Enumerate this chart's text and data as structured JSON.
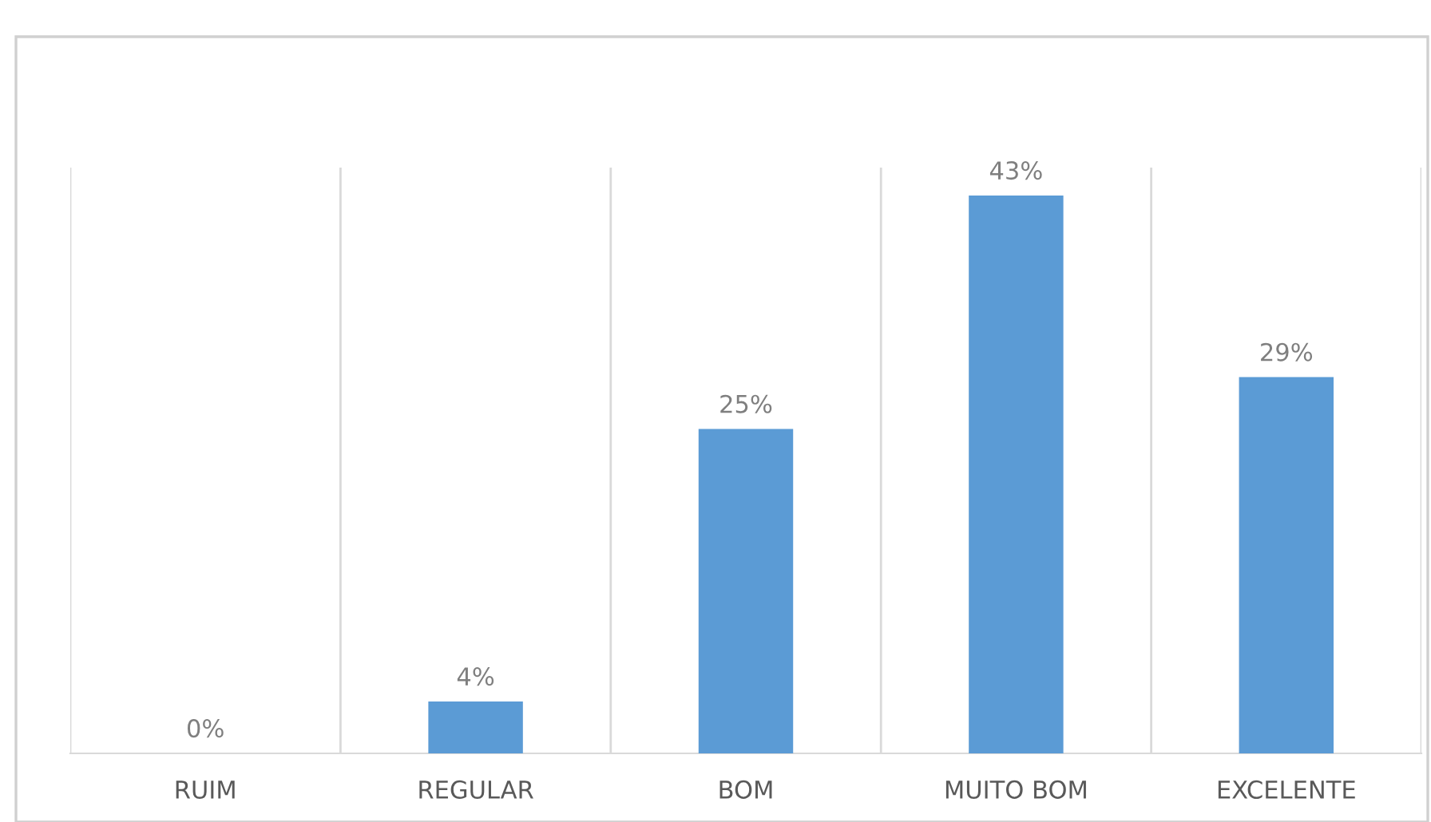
{
  "chart_data": {
    "type": "bar",
    "categories": [
      "RUIM",
      "REGULAR",
      "BOM",
      "MUITO BOM",
      "EXCELENTE"
    ],
    "values": [
      0,
      4,
      25,
      43,
      29
    ],
    "value_labels": [
      "0%",
      "4%",
      "25%",
      "43%",
      "29%"
    ],
    "color": "#5b9bd5",
    "grid": "x",
    "legend": false
  }
}
